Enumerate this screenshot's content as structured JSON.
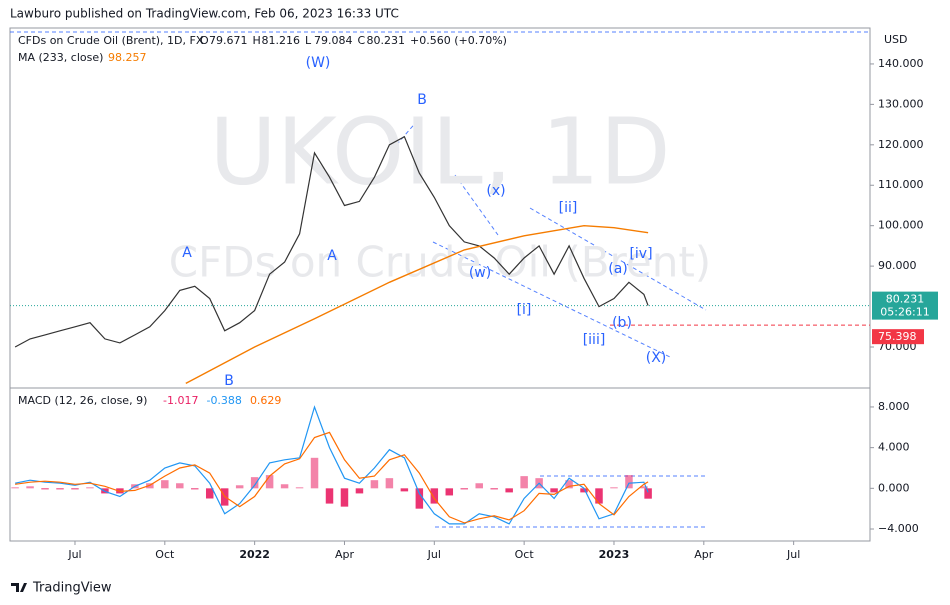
{
  "header": {
    "publisher": "Lawburo published on TradingView.com, Feb 06, 2023 16:33 UTC",
    "brand": "TradingView"
  },
  "chart_data": [
    {
      "type": "line",
      "title": "CFDs on Crude Oil (Brent), 1D, FX",
      "ohlc": [
        {
          "label": "O",
          "value": 79.671
        },
        {
          "label": "H",
          "value": 81.216
        },
        {
          "label": "L",
          "value": 79.084
        },
        {
          "label": "C",
          "value": 80.231
        }
      ],
      "change": "+0.560 (+0.70%)",
      "watermark": [
        "UKOIL, 1D",
        "CFDs on Crude Oil (Brent)"
      ],
      "currency": "USD",
      "countdown": "05:26:11",
      "x": [
        4,
        4.5,
        5,
        5.5,
        6,
        6.5,
        7,
        7.5,
        8,
        8.5,
        9,
        9.5,
        10,
        10.5,
        11,
        11.5,
        12,
        12.5,
        13,
        13.5,
        14,
        14.5,
        15,
        15.5,
        16,
        16.5,
        17,
        17.5,
        18,
        18.5,
        19,
        19.5,
        20,
        20.5,
        21,
        21.5,
        22,
        22.5,
        23,
        23.5,
        24,
        24.5,
        25,
        25.14
      ],
      "series": [
        {
          "color": "#333333",
          "values": [
            70,
            72,
            73,
            74,
            75,
            76,
            72,
            71,
            73,
            75,
            79,
            84,
            85,
            82,
            74,
            76,
            79,
            88,
            91,
            98,
            118,
            112,
            105,
            106,
            112,
            120,
            122,
            113,
            107,
            100,
            96,
            95,
            92,
            88,
            92,
            95,
            88,
            95,
            87,
            80,
            82,
            86,
            83,
            80.231
          ]
        },
        {
          "name": "MA (233, close)",
          "color": "#f57c00",
          "x": [
            9.7,
            12,
            14,
            16.5,
            19,
            21,
            23,
            24,
            25.14
          ],
          "values": [
            61,
            70,
            77,
            86,
            94,
            97.5,
            100,
            99.5,
            98.257
          ]
        }
      ],
      "alert_line": {
        "value": 75.398,
        "color": "#f23645"
      },
      "xlim": [
        3.83,
        32.55
      ],
      "xticks": [
        {
          "value": 6,
          "label": "Jul"
        },
        {
          "value": 9,
          "label": "Oct"
        },
        {
          "value": 12,
          "label": "2022"
        },
        {
          "value": 15,
          "label": "Apr"
        },
        {
          "value": 18,
          "label": "Jul"
        },
        {
          "value": 21,
          "label": "Oct"
        },
        {
          "value": 24,
          "label": "2023"
        },
        {
          "value": 27,
          "label": "Apr"
        },
        {
          "value": 30,
          "label": "Jul"
        }
      ],
      "ylim": [
        60.6,
        147.9
      ],
      "yticks": [
        {
          "value": 70,
          "label": "70.000"
        },
        {
          "value": 90,
          "label": "90.000"
        },
        {
          "value": 100,
          "label": "100.000"
        },
        {
          "value": 110,
          "label": "110.000"
        },
        {
          "value": 120,
          "label": "120.000"
        },
        {
          "value": 130,
          "label": "130.000"
        },
        {
          "value": 140,
          "label": "140.000"
        }
      ],
      "annotations": [
        "(W)",
        "B",
        "A",
        "A",
        "B",
        "(x)",
        "[ii]",
        "(w)",
        "[i]",
        "[iv]",
        "(a)",
        "(b)",
        "[iii]",
        "(X)"
      ]
    },
    {
      "type": "macd",
      "title": "MACD (12, 26, close, 9)",
      "x": [
        4,
        4.5,
        5,
        5.5,
        6,
        6.5,
        7,
        7.5,
        8,
        8.5,
        9,
        9.5,
        10,
        10.5,
        11,
        11.5,
        12,
        12.5,
        13,
        13.5,
        14,
        14.5,
        15,
        15.5,
        16,
        16.5,
        17,
        17.5,
        18,
        18.5,
        19,
        19.5,
        20,
        20.5,
        21,
        21.5,
        22,
        22.5,
        23,
        23.5,
        24,
        24.5,
        25,
        25.14
      ],
      "series": [
        {
          "kind": "histogram",
          "color": "#e91e63",
          "values": [
            0.1,
            0.2,
            -0.1,
            -0.1,
            -0.1,
            0.1,
            -0.5,
            -0.5,
            0.4,
            0.5,
            0.8,
            0.5,
            -0.1,
            -1,
            -1.7,
            0.3,
            1.1,
            1.3,
            0.4,
            0.1,
            3,
            -1.5,
            -1.8,
            -0.5,
            0.8,
            1,
            -0.3,
            -2,
            -1.5,
            -0.7,
            -0.1,
            0.5,
            -0.1,
            -0.4,
            1.2,
            1,
            -0.4,
            0.8,
            -0.4,
            -1.5,
            0.1,
            1.3,
            0.2,
            -1.017
          ]
        },
        {
          "kind": "line",
          "color": "#2196f3",
          "values": [
            0.5,
            0.8,
            0.6,
            0.5,
            0.3,
            0.6,
            -0.3,
            -0.8,
            0.2,
            0.8,
            2,
            2.5,
            2.2,
            0.5,
            -2.5,
            -1.5,
            0.3,
            2.5,
            2.8,
            3,
            8,
            4,
            1,
            0.5,
            2,
            3.8,
            3,
            -0.5,
            -2.5,
            -3.5,
            -3.5,
            -2.5,
            -2.8,
            -3.5,
            -1,
            0.5,
            -1,
            1,
            0,
            -3,
            -2.5,
            0.5,
            0.6,
            -0.388
          ]
        },
        {
          "kind": "line",
          "color": "#ff6d00",
          "values": [
            0.4,
            0.6,
            0.7,
            0.6,
            0.4,
            0.5,
            0.2,
            -0.3,
            -0.2,
            0.3,
            1.2,
            2,
            2.3,
            1.5,
            -0.8,
            -1.8,
            -0.8,
            1.2,
            2.4,
            2.9,
            5,
            5.5,
            2.8,
            1,
            1.2,
            2.8,
            3.3,
            1.5,
            -1,
            -2.8,
            -3.4,
            -3,
            -2.7,
            -3.1,
            -2.2,
            -0.5,
            -0.6,
            0.2,
            0.4,
            -1.5,
            -2.6,
            -0.8,
            0.4,
            0.629
          ]
        }
      ],
      "xlim": [
        3.83,
        32.55
      ],
      "ylim": [
        -5.08,
        9.47
      ],
      "yticks": [
        {
          "value": 8,
          "label": "8.000"
        },
        {
          "value": 4,
          "label": "4.000"
        },
        {
          "value": 0,
          "label": "0.000"
        },
        {
          "value": -4,
          "label": "−4.000"
        }
      ]
    }
  ]
}
